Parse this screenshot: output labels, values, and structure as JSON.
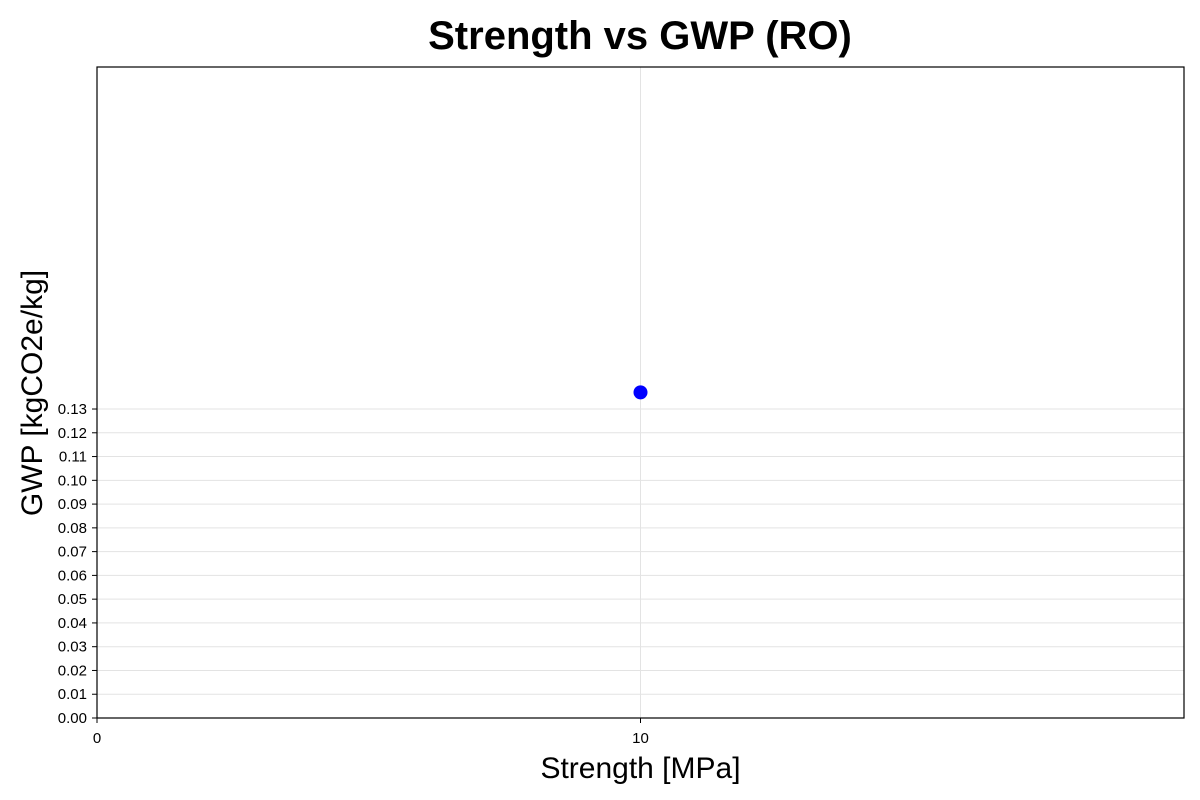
{
  "chart_data": {
    "type": "scatter",
    "title": "Strength vs GWP (RO)",
    "xlabel": "Strength [MPa]",
    "ylabel": "GWP [kgCO2e/kg]",
    "xlim": [
      0,
      20
    ],
    "ylim": [
      0,
      0.2739
    ],
    "x_ticks": [
      0,
      10
    ],
    "x_tick_labels": [
      "0",
      "10"
    ],
    "y_ticks": [
      0.0,
      0.01,
      0.02,
      0.03,
      0.04,
      0.05,
      0.06,
      0.07,
      0.08,
      0.09,
      0.1,
      0.11,
      0.12,
      0.13
    ],
    "y_tick_labels": [
      "0.00",
      "0.01",
      "0.02",
      "0.03",
      "0.04",
      "0.05",
      "0.06",
      "0.07",
      "0.08",
      "0.09",
      "0.10",
      "0.11",
      "0.12",
      "0.13"
    ],
    "grid": true,
    "series": [
      {
        "x": [
          10
        ],
        "y": [
          0.137
        ],
        "color": "#0000ff"
      }
    ]
  }
}
